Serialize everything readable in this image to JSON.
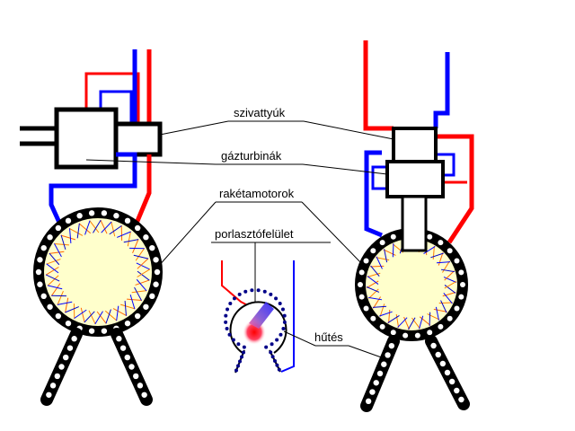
{
  "labels": {
    "pumps": "szivattyúk",
    "gas_turbines": "gázturbinák",
    "rocket_engines": "rakétamotorok",
    "injector_face": "porlasztófelület",
    "cooling": "hűtés"
  },
  "colors": {
    "fuel_line": "#ff0000",
    "oxidizer_line": "#0000ff",
    "chamber_fill": "#ffffcc",
    "outline": "#000000"
  }
}
